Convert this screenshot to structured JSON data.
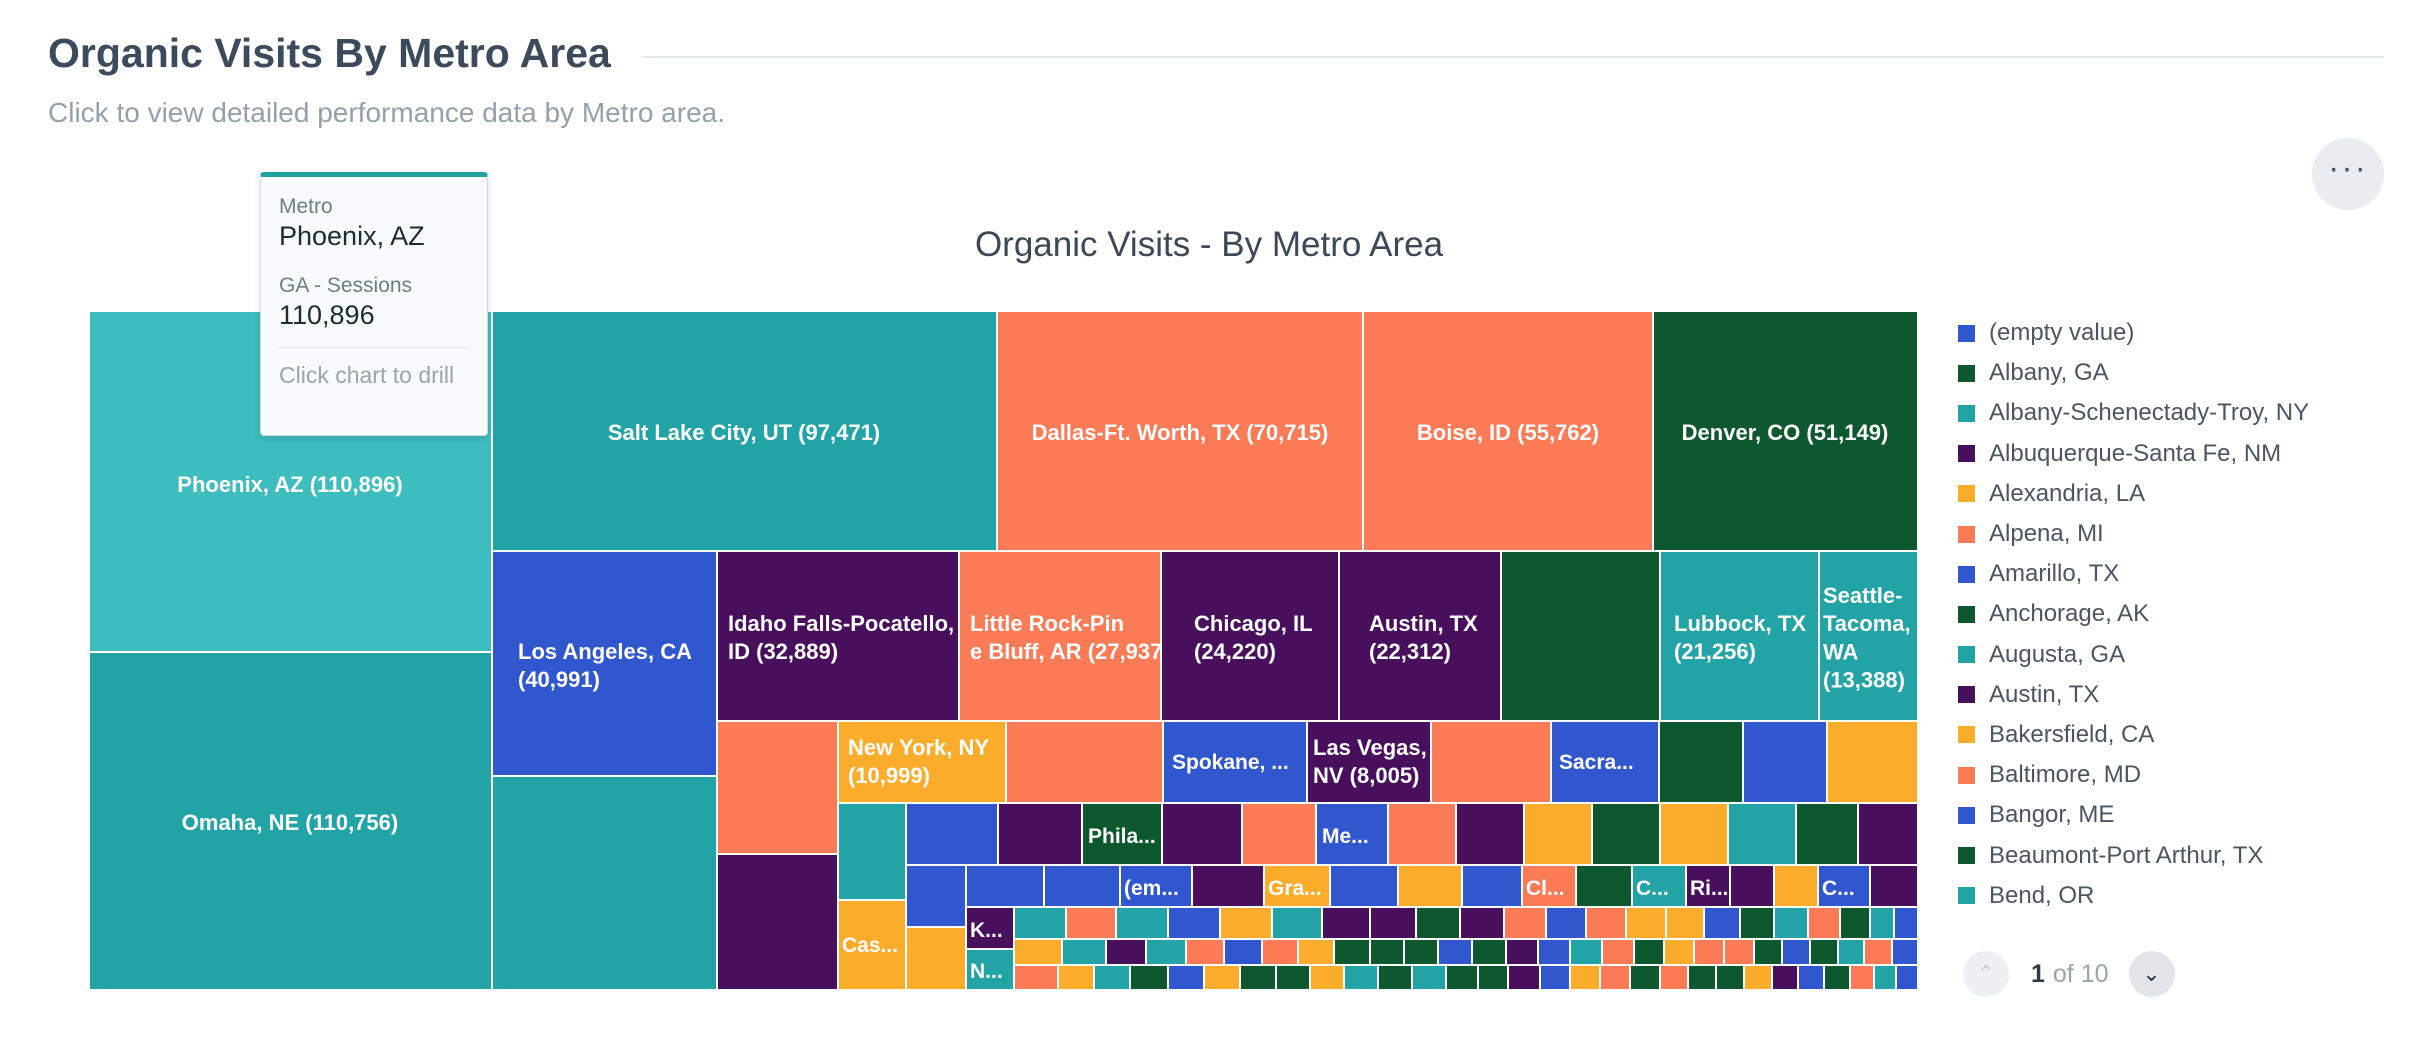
{
  "header": {
    "title": "Organic Visits By Metro Area",
    "subtitle": "Click to view detailed performance data by Metro area.",
    "options_label": "···"
  },
  "colors": {
    "blue": "#3157cf",
    "dark_green": "#0e5830",
    "teal": "#22a3a5",
    "purple": "#470f5c",
    "orange": "#fbac2a",
    "coral": "#fc7b57",
    "highlight_teal": "#3ebdbe"
  },
  "chart_data": {
    "type": "treemap",
    "title": "Organic Visits - By Metro Area",
    "measure": "GA - Sessions",
    "items": [
      {
        "name": "Phoenix, AZ",
        "value": 110896,
        "label": "Phoenix, AZ (110,896)",
        "color": "#3ebdbe"
      },
      {
        "name": "Omaha, NE",
        "value": 110756,
        "label": "Omaha, NE (110,756)",
        "color": "#22a3a5"
      },
      {
        "name": "Salt Lake City, UT",
        "value": 97471,
        "label": "Salt Lake City, UT (97,471)",
        "color": "#22a3a5"
      },
      {
        "name": "Dallas-Ft. Worth, TX",
        "value": 70715,
        "label": "Dallas-Ft. Worth, TX (70,715)",
        "color": "#fc7b57"
      },
      {
        "name": "Boise, ID",
        "value": 55762,
        "label": "Boise, ID (55,762)",
        "color": "#fc7b57"
      },
      {
        "name": "Denver, CO",
        "value": 51149,
        "label": "Denver, CO (51,149)",
        "color": "#0e5830"
      },
      {
        "name": "Los Angeles, CA",
        "value": 40991,
        "label": "Los Angeles, CA (40,991)",
        "color": "#3157cf"
      },
      {
        "name": "Idaho Falls-Pocatello, ID",
        "value": 32889,
        "label": "Idaho Falls-Pocatello, ID (32,889)",
        "color": "#470f5c"
      },
      {
        "name": "Little Rock-Pine Bluff, AR",
        "value": 27937,
        "label": "Little Rock-Pine Bluff, AR (27,937)",
        "color": "#fc7b57"
      },
      {
        "name": "Chicago, IL",
        "value": 24220,
        "label": "Chicago, IL (24,220)",
        "color": "#470f5c"
      },
      {
        "name": "Austin, TX",
        "value": 22312,
        "label": "Austin, TX (22,312)",
        "color": "#470f5c"
      },
      {
        "name": "Lubbock, TX",
        "value": 21256,
        "label": "Lubbock, TX (21,256)",
        "color": "#22a3a5"
      },
      {
        "name": "Seattle-Tacoma, WA",
        "value": 13388,
        "label": "Seattle-Tacoma, WA (13,388)",
        "color": "#22a3a5"
      },
      {
        "name": "New York, NY",
        "value": 10999,
        "label": "New York, NY (10,999)",
        "color": "#fbac2a"
      },
      {
        "name": "Las Vegas, NV",
        "value": 8005,
        "label": "Las Vegas, NV (8,005)",
        "color": "#470f5c"
      }
    ],
    "truncated_labels": [
      "Spokane, ...",
      "Sacra...",
      "Phila...",
      "Me...",
      "(em...",
      "Gra...",
      "Cl...",
      "C...",
      "Ri...",
      "C...",
      "K...",
      "N...",
      "Cas..."
    ],
    "legend": [
      {
        "name": "(empty value)",
        "color": "#3157cf"
      },
      {
        "name": "Albany, GA",
        "color": "#0e5830"
      },
      {
        "name": "Albany-Schenectady-Troy, NY",
        "color": "#22a3a5"
      },
      {
        "name": "Albuquerque-Santa Fe, NM",
        "color": "#470f5c"
      },
      {
        "name": "Alexandria, LA",
        "color": "#fbac2a"
      },
      {
        "name": "Alpena, MI",
        "color": "#fc7b57"
      },
      {
        "name": "Amarillo, TX",
        "color": "#3157cf"
      },
      {
        "name": "Anchorage, AK",
        "color": "#0e5830"
      },
      {
        "name": "Augusta, GA",
        "color": "#22a3a5"
      },
      {
        "name": "Austin, TX",
        "color": "#470f5c"
      },
      {
        "name": "Bakersfield, CA",
        "color": "#fbac2a"
      },
      {
        "name": "Baltimore, MD",
        "color": "#fc7b57"
      },
      {
        "name": "Bangor, ME",
        "color": "#3157cf"
      },
      {
        "name": "Beaumont-Port Arthur, TX",
        "color": "#0e5830"
      },
      {
        "name": "Bend, OR",
        "color": "#22a3a5"
      }
    ],
    "legend_page": {
      "current": "1",
      "of_text": "of 10"
    }
  },
  "tooltip": {
    "dimension_label": "Metro",
    "dimension_value": "Phoenix, AZ",
    "measure_label": "GA - Sessions",
    "measure_value": "110,896",
    "hint": "Click chart to drill"
  }
}
